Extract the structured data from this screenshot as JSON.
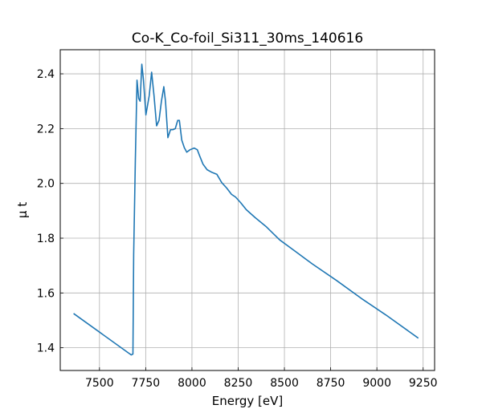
{
  "chart_data": {
    "type": "line",
    "title": "Co-K_Co-foil_Si311_30ms_140616",
    "xlabel": "Energy [eV]",
    "ylabel": "μ t",
    "xlim": [
      7288,
      9312
    ],
    "ylim": [
      1.317,
      2.488
    ],
    "xticks": [
      7500,
      7750,
      8000,
      8250,
      8500,
      8750,
      9000,
      9250
    ],
    "yticks": [
      1.4,
      1.6,
      1.8,
      {
        "value": 2.0,
        "label": "2.0"
      },
      2.2,
      2.4
    ],
    "grid": true,
    "series": [
      {
        "name": "Co-K_Co-foil_Si311_30ms_140616",
        "color": "#1f77b4",
        "x": [
          7360,
          7659,
          7672,
          7681,
          7685,
          7694,
          7703,
          7712,
          7720,
          7729,
          7738,
          7751,
          7769,
          7782,
          7795,
          7809,
          7822,
          7835,
          7848,
          7857,
          7870,
          7884,
          7897,
          7910,
          7923,
          7932,
          7945,
          7959,
          7972,
          7990,
          8012,
          8029,
          8042,
          8060,
          8082,
          8109,
          8135,
          8161,
          8188,
          8214,
          8236,
          8263,
          8294,
          8342,
          8400,
          8474,
          8563,
          8651,
          8783,
          8916,
          9048,
          9224
        ],
        "values": [
          1.525,
          1.38,
          1.374,
          1.377,
          1.74,
          2.085,
          2.377,
          2.31,
          2.3,
          2.435,
          2.377,
          2.25,
          2.32,
          2.406,
          2.32,
          2.21,
          2.23,
          2.3,
          2.353,
          2.3,
          2.167,
          2.196,
          2.196,
          2.2,
          2.23,
          2.23,
          2.158,
          2.13,
          2.114,
          2.123,
          2.129,
          2.123,
          2.1,
          2.07,
          2.05,
          2.04,
          2.033,
          2.003,
          1.983,
          1.96,
          1.95,
          1.93,
          1.904,
          1.875,
          1.843,
          1.794,
          1.75,
          1.706,
          1.645,
          1.58,
          1.52,
          1.435
        ]
      }
    ]
  }
}
